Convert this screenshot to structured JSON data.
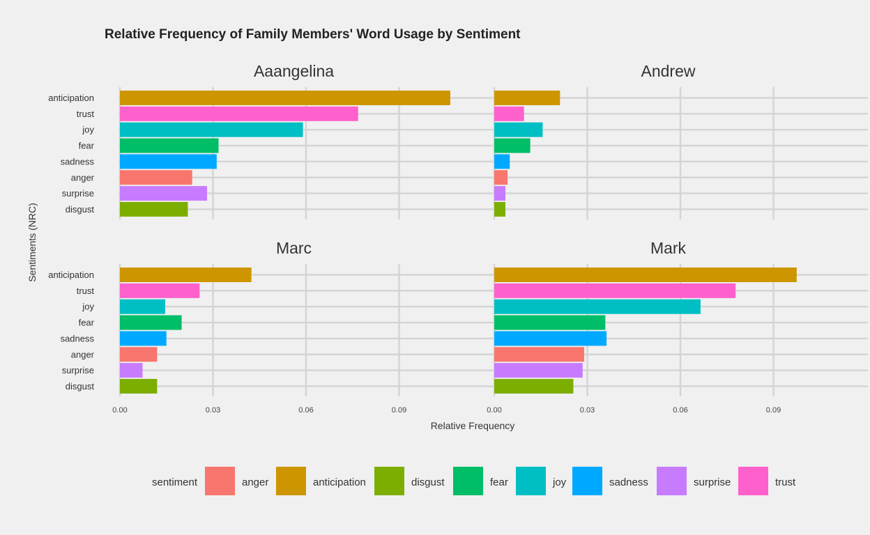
{
  "chart_data": {
    "type": "bar",
    "orientation": "horizontal",
    "title": "Relative Frequency of Family Members' Word Usage by Sentiment",
    "xlabel": "Relative Frequency",
    "ylabel": "Sentiments (NRC)",
    "xlim": [
      0,
      0.11
    ],
    "xticks": [
      0.0,
      0.03,
      0.06,
      0.09
    ],
    "xtick_labels": [
      "0.00",
      "0.03",
      "0.06",
      "0.09"
    ],
    "grid": true,
    "categories": [
      "anticipation",
      "trust",
      "joy",
      "fear",
      "sadness",
      "anger",
      "surprise",
      "disgust"
    ],
    "colors": {
      "anger": "#f8766d",
      "anticipation": "#cd9600",
      "disgust": "#7cae00",
      "fear": "#00be67",
      "joy": "#00bfc4",
      "sadness": "#00a9ff",
      "surprise": "#c77cff",
      "trust": "#ff61cc"
    },
    "facets": [
      {
        "name": "Aaangelina",
        "values": {
          "anticipation": 0.1065,
          "trust": 0.0768,
          "joy": 0.059,
          "fear": 0.0318,
          "sadness": 0.0312,
          "anger": 0.0233,
          "surprise": 0.0281,
          "disgust": 0.0219
        }
      },
      {
        "name": "Andrew",
        "values": {
          "anticipation": 0.0212,
          "trust": 0.0096,
          "joy": 0.0156,
          "fear": 0.0116,
          "sadness": 0.005,
          "anger": 0.0043,
          "surprise": 0.0036,
          "disgust": 0.0036
        }
      },
      {
        "name": "Marc",
        "values": {
          "anticipation": 0.0424,
          "trust": 0.0257,
          "joy": 0.0146,
          "fear": 0.0199,
          "sadness": 0.015,
          "anger": 0.012,
          "surprise": 0.0073,
          "disgust": 0.012
        }
      },
      {
        "name": "Mark",
        "values": {
          "anticipation": 0.0975,
          "trust": 0.0778,
          "joy": 0.0665,
          "fear": 0.0358,
          "sadness": 0.0362,
          "anger": 0.029,
          "surprise": 0.0285,
          "disgust": 0.0255
        }
      }
    ],
    "legend": {
      "title": "sentiment",
      "position": "bottom",
      "entries": [
        "anger",
        "anticipation",
        "disgust",
        "fear",
        "joy",
        "sadness",
        "surprise",
        "trust"
      ]
    }
  }
}
